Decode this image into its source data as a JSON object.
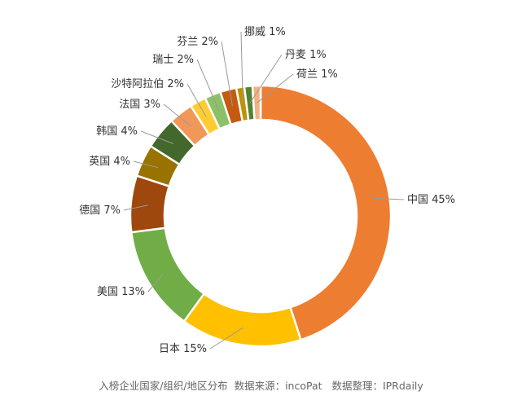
{
  "chart_data": {
    "type": "pie",
    "variant": "donut",
    "legend": "none",
    "categories": [
      "中国",
      "日本",
      "美国",
      "德国",
      "英国",
      "韩国",
      "法国",
      "沙特阿拉伯",
      "瑞士",
      "芬兰",
      "挪威",
      "丹麦",
      "荷兰"
    ],
    "values": [
      45,
      15,
      13,
      7,
      4,
      4,
      3,
      2,
      2,
      2,
      1,
      1,
      1
    ],
    "value_suffix": "%",
    "colors": [
      "#ED7D31",
      "#FFC000",
      "#70AD47",
      "#9E480E",
      "#997300",
      "#43682B",
      "#F1975A",
      "#FFCD33",
      "#8CC168",
      "#C55A11",
      "#BF9000",
      "#548235",
      "#F4B183"
    ]
  },
  "caption": "入榜企业国家/组织/地区分布  数据来源：incoPat   数据整理：IPRdaily"
}
